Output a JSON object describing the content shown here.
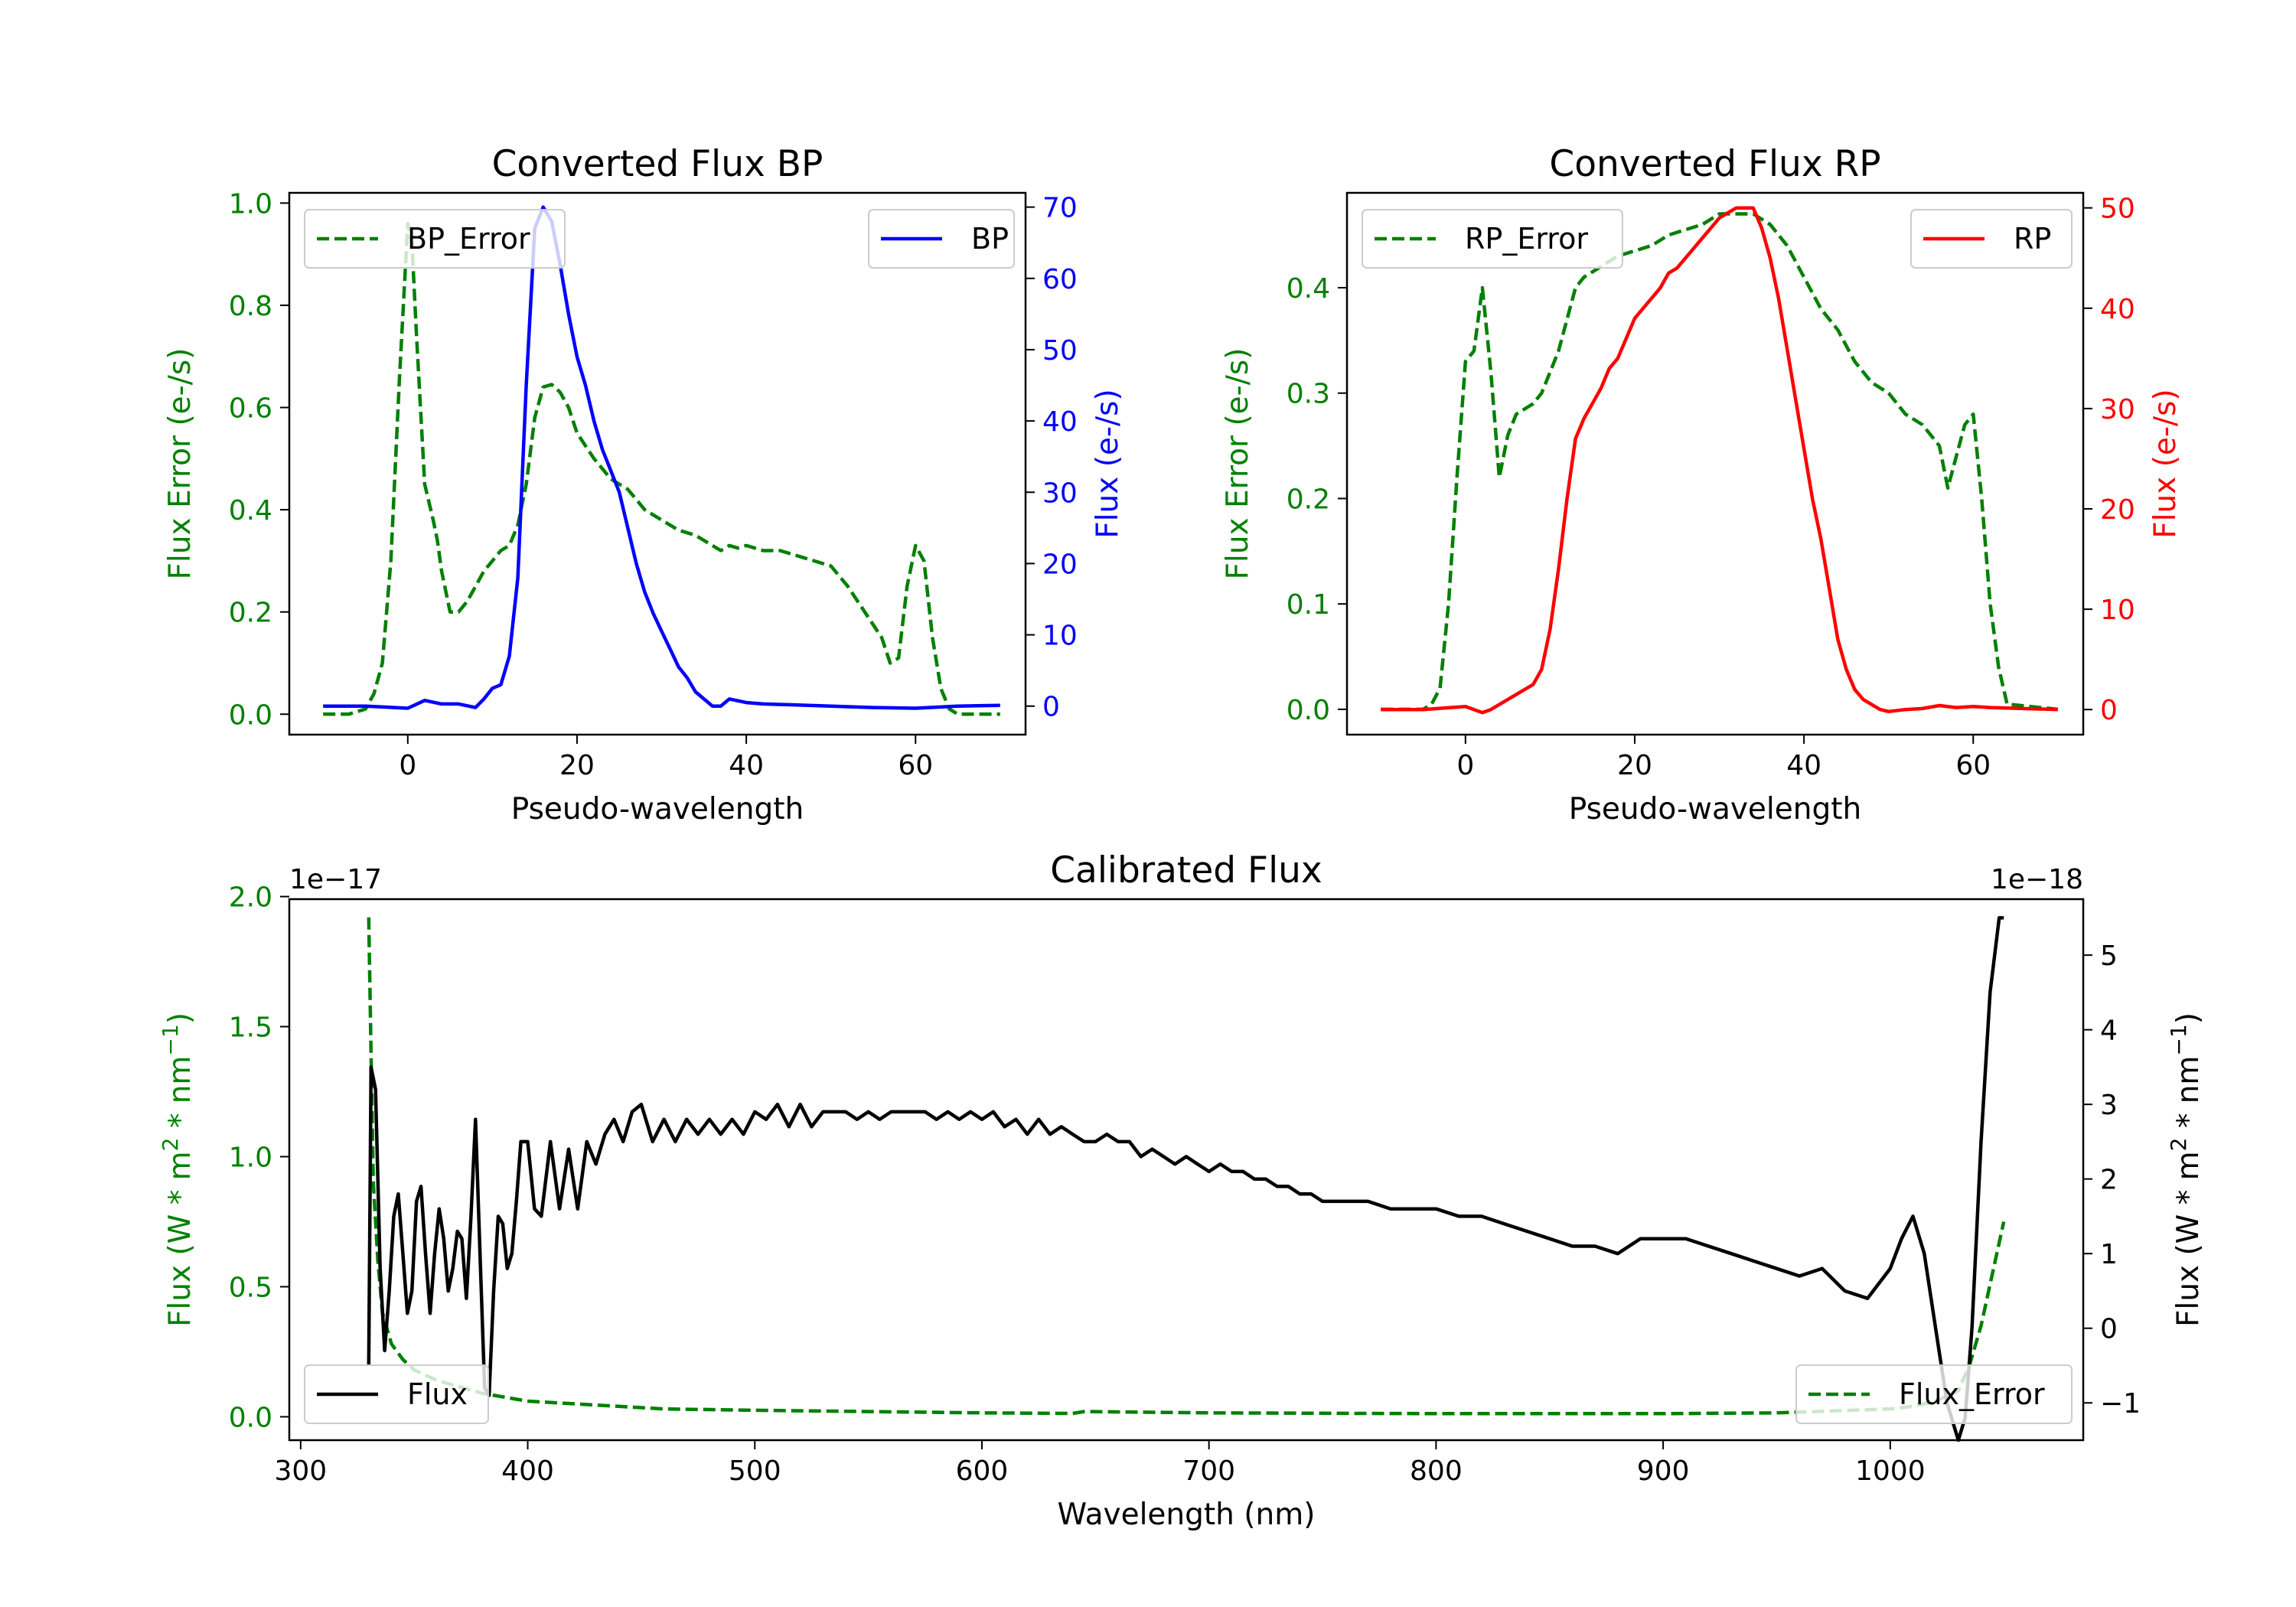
{
  "colors": {
    "green": "#008000",
    "blue": "#0000ff",
    "red": "#ff0000",
    "black": "#000000"
  },
  "chart_data": [
    {
      "type": "line",
      "title": "Converted Flux BP",
      "xlabel": "Pseudo-wavelength",
      "ylabel_left": "Flux Error (e-/s)",
      "ylabel_right": "Flux (e-/s)",
      "xlim": [
        -14,
        73
      ],
      "ylim_left": [
        -0.04,
        1.02
      ],
      "ylim_right": [
        -4,
        72
      ],
      "xticks": [
        0,
        20,
        40,
        60
      ],
      "yticks_left": [
        0.0,
        0.2,
        0.4,
        0.6,
        0.8,
        1.0
      ],
      "yticks_left_labels": [
        "0.0",
        "0.2",
        "0.4",
        "0.6",
        "0.8",
        "1.0"
      ],
      "yticks_right": [
        0,
        10,
        20,
        30,
        40,
        50,
        60,
        70
      ],
      "yticks_right_labels": [
        "0",
        "10",
        "20",
        "30",
        "40",
        "50",
        "60",
        "70"
      ],
      "legend_left": {
        "label": "BP_Error",
        "placement": "upper left"
      },
      "legend_right": {
        "label": "BP",
        "placement": "upper right"
      },
      "series_left": {
        "name": "BP_Error",
        "style": "dashed",
        "color": "green",
        "x": [
          -10,
          -7,
          -5,
          -4,
          -3,
          -2,
          -1,
          0,
          0.5,
          1,
          2,
          3,
          3.5,
          4,
          5,
          6,
          7,
          8,
          9,
          10,
          11,
          12,
          13,
          14,
          15,
          16,
          17,
          18,
          19,
          20,
          22,
          24,
          26,
          28,
          30,
          32,
          34,
          36,
          37,
          38,
          39,
          40,
          42,
          44,
          46,
          48,
          50,
          52,
          54,
          56,
          57,
          58,
          59,
          60,
          61,
          62,
          63,
          64,
          65,
          66,
          70
        ],
        "y": [
          0,
          0,
          0.01,
          0.04,
          0.1,
          0.3,
          0.65,
          0.96,
          0.92,
          0.75,
          0.45,
          0.38,
          0.34,
          0.28,
          0.2,
          0.2,
          0.22,
          0.25,
          0.28,
          0.3,
          0.32,
          0.33,
          0.37,
          0.45,
          0.58,
          0.64,
          0.645,
          0.63,
          0.6,
          0.55,
          0.5,
          0.46,
          0.44,
          0.4,
          0.38,
          0.36,
          0.35,
          0.33,
          0.32,
          0.33,
          0.325,
          0.33,
          0.32,
          0.32,
          0.31,
          0.3,
          0.29,
          0.25,
          0.2,
          0.15,
          0.1,
          0.11,
          0.25,
          0.33,
          0.3,
          0.15,
          0.05,
          0.01,
          0,
          0,
          0
        ]
      },
      "series_right": {
        "name": "BP",
        "style": "solid",
        "color": "blue",
        "x": [
          -10,
          -5,
          0,
          2,
          4,
          6,
          8,
          9,
          10,
          11,
          12,
          13,
          14,
          15,
          16,
          17,
          18,
          19,
          20,
          21,
          22,
          23,
          24,
          25,
          26,
          27,
          28,
          29,
          30,
          31,
          32,
          33,
          34,
          35,
          36,
          37,
          38,
          40,
          42,
          45,
          50,
          55,
          60,
          65,
          70
        ],
        "y": [
          0,
          0,
          -0.3,
          0.8,
          0.3,
          0.3,
          -0.2,
          1,
          2.5,
          3,
          7,
          18,
          45,
          67,
          70,
          68,
          62,
          55,
          49,
          45,
          40,
          36,
          33,
          30,
          25,
          20,
          16,
          13,
          10.5,
          8,
          5.5,
          4,
          2,
          1,
          0,
          0,
          1,
          0.5,
          0.3,
          0.2,
          0,
          -0.2,
          -0.3,
          0,
          0.1
        ]
      }
    },
    {
      "type": "line",
      "title": "Converted Flux RP",
      "xlabel": "Pseudo-wavelength",
      "ylabel_left": "Flux Error (e-/s)",
      "ylabel_right": "Flux (e-/s)",
      "xlim": [
        -14,
        73
      ],
      "ylim_left": [
        -0.024,
        0.49
      ],
      "ylim_right": [
        -2.5,
        51.5
      ],
      "xticks": [
        0,
        20,
        40,
        60
      ],
      "yticks_left": [
        0.0,
        0.1,
        0.2,
        0.3,
        0.4
      ],
      "yticks_left_labels": [
        "0.0",
        "0.1",
        "0.2",
        "0.3",
        "0.4"
      ],
      "yticks_right": [
        0,
        10,
        20,
        30,
        40,
        50
      ],
      "yticks_right_labels": [
        "0",
        "10",
        "20",
        "30",
        "40",
        "50"
      ],
      "legend_left": {
        "label": "RP_Error",
        "placement": "upper left"
      },
      "legend_right": {
        "label": "RP",
        "placement": "upper right"
      },
      "series_left": {
        "name": "RP_Error",
        "style": "dashed",
        "color": "green",
        "x": [
          -10,
          -5,
          -4,
          -3,
          -2,
          -1,
          0,
          1,
          2,
          3,
          4,
          5,
          6,
          7,
          8,
          9,
          10,
          11,
          12,
          13,
          14,
          15,
          16,
          17,
          18,
          20,
          22,
          24,
          26,
          28,
          30,
          32,
          34,
          36,
          38,
          40,
          42,
          44,
          46,
          48,
          50,
          52,
          54,
          55,
          56,
          57,
          58,
          59,
          60,
          61,
          62,
          63,
          64,
          70
        ],
        "y": [
          0,
          0,
          0.005,
          0.02,
          0.1,
          0.22,
          0.33,
          0.34,
          0.4,
          0.32,
          0.22,
          0.26,
          0.28,
          0.285,
          0.29,
          0.3,
          0.32,
          0.34,
          0.37,
          0.4,
          0.41,
          0.415,
          0.42,
          0.425,
          0.43,
          0.435,
          0.44,
          0.45,
          0.455,
          0.46,
          0.47,
          0.47,
          0.47,
          0.46,
          0.44,
          0.41,
          0.38,
          0.36,
          0.33,
          0.31,
          0.3,
          0.28,
          0.27,
          0.26,
          0.25,
          0.21,
          0.24,
          0.27,
          0.28,
          0.2,
          0.1,
          0.04,
          0.005,
          0
        ]
      },
      "series_right": {
        "name": "RP",
        "style": "solid",
        "color": "red",
        "x": [
          -10,
          -5,
          0,
          1,
          2,
          3,
          4,
          5,
          6,
          7,
          8,
          9,
          10,
          11,
          12,
          13,
          14,
          15,
          16,
          17,
          18,
          19,
          20,
          21,
          22,
          23,
          24,
          25,
          26,
          27,
          28,
          29,
          30,
          31,
          32,
          33,
          34,
          35,
          36,
          37,
          38,
          39,
          40,
          41,
          42,
          43,
          44,
          45,
          46,
          47,
          48,
          49,
          50,
          52,
          54,
          56,
          58,
          60,
          62,
          70
        ],
        "y": [
          0,
          0,
          0.3,
          0,
          -0.3,
          0,
          0.5,
          1,
          1.5,
          2,
          2.5,
          4,
          8,
          14,
          21,
          27,
          29,
          30.5,
          32,
          34,
          35,
          37,
          39,
          40,
          41,
          42,
          43.5,
          44,
          45,
          46,
          47,
          48,
          49,
          49.5,
          50,
          50,
          50,
          48,
          45,
          41,
          36,
          31,
          26,
          21,
          17,
          12,
          7,
          4,
          2,
          1,
          0.5,
          0,
          -0.2,
          0,
          0.1,
          0.4,
          0.2,
          0.3,
          0.2,
          0
        ]
      }
    },
    {
      "type": "line",
      "title": "Calibrated Flux",
      "xlabel": "Wavelength (nm)",
      "ylabel_left": "Flux (W * m^2 * nm^-1)",
      "ylabel_right": "Flux (W * m^2 * nm^-1)",
      "offset_left": "1e−17",
      "offset_right": "1e−18",
      "xlim": [
        295,
        1085
      ],
      "ylim_left": [
        -0.09,
        1.99
      ],
      "ylim_right": [
        -1.5,
        5.75
      ],
      "xticks": [
        300,
        400,
        500,
        600,
        700,
        800,
        900,
        1000
      ],
      "yticks_left": [
        0.0,
        0.5,
        1.0,
        1.5,
        2.0
      ],
      "yticks_left_labels": [
        "0.0",
        "0.5",
        "1.0",
        "1.5",
        "2.0"
      ],
      "yticks_right": [
        -1,
        0,
        1,
        2,
        3,
        4,
        5
      ],
      "yticks_right_labels": [
        "−1",
        "0",
        "1",
        "2",
        "3",
        "4",
        "5"
      ],
      "legend_left": {
        "label": "Flux",
        "placement": "lower left"
      },
      "legend_right": {
        "label": "Flux_Error",
        "placement": "lower right"
      },
      "series_left": {
        "name": "Flux_Error",
        "style": "dashed",
        "color": "green",
        "x": [
          330,
          331,
          332,
          334,
          336,
          340,
          345,
          350,
          360,
          380,
          400,
          420,
          440,
          460,
          500,
          550,
          600,
          640,
          645,
          700,
          800,
          900,
          950,
          1000,
          1010,
          1020,
          1030,
          1035,
          1040,
          1045,
          1050
        ],
        "y": [
          1.92,
          1.4,
          0.9,
          0.6,
          0.4,
          0.28,
          0.22,
          0.18,
          0.14,
          0.09,
          0.06,
          0.05,
          0.04,
          0.03,
          0.025,
          0.02,
          0.015,
          0.013,
          0.02,
          0.015,
          0.012,
          0.012,
          0.015,
          0.03,
          0.04,
          0.06,
          0.1,
          0.2,
          0.35,
          0.55,
          0.75
        ]
      },
      "series_right": {
        "name": "Flux",
        "style": "solid",
        "color": "black",
        "x": [
          330,
          331,
          333,
          335,
          337,
          339,
          341,
          343,
          345,
          347,
          349,
          351,
          353,
          355,
          357,
          359,
          361,
          363,
          365,
          367,
          369,
          371,
          373,
          375,
          377,
          379,
          381,
          383,
          385,
          387,
          389,
          391,
          393,
          395,
          397,
          400,
          403,
          406,
          410,
          414,
          418,
          422,
          426,
          430,
          434,
          438,
          442,
          446,
          450,
          455,
          460,
          465,
          470,
          475,
          480,
          485,
          490,
          495,
          500,
          505,
          510,
          515,
          520,
          525,
          530,
          535,
          540,
          545,
          550,
          555,
          560,
          565,
          570,
          575,
          580,
          585,
          590,
          595,
          600,
          605,
          610,
          615,
          620,
          625,
          630,
          635,
          640,
          645,
          650,
          655,
          660,
          665,
          670,
          675,
          680,
          685,
          690,
          695,
          700,
          705,
          710,
          715,
          720,
          725,
          730,
          735,
          740,
          745,
          750,
          760,
          770,
          780,
          790,
          800,
          810,
          820,
          830,
          840,
          850,
          860,
          870,
          880,
          890,
          900,
          910,
          920,
          930,
          940,
          950,
          960,
          970,
          980,
          990,
          1000,
          1005,
          1010,
          1015,
          1020,
          1025,
          1030,
          1033,
          1036,
          1040,
          1044,
          1048,
          1050
        ],
        "y": [
          -0.5,
          3.5,
          3.2,
          0.8,
          -0.3,
          0.5,
          1.5,
          1.8,
          1,
          0.2,
          0.5,
          1.7,
          1.9,
          1,
          0.2,
          1,
          1.6,
          1.2,
          0.5,
          0.8,
          1.3,
          1.2,
          0.4,
          1.5,
          2.8,
          1,
          -0.8,
          -0.9,
          0.5,
          1.5,
          1.4,
          0.8,
          1,
          1.7,
          2.5,
          2.5,
          1.6,
          1.5,
          2.5,
          1.6,
          2.4,
          1.6,
          2.5,
          2.2,
          2.6,
          2.8,
          2.5,
          2.9,
          3,
          2.5,
          2.8,
          2.5,
          2.8,
          2.6,
          2.8,
          2.6,
          2.8,
          2.6,
          2.9,
          2.8,
          3,
          2.7,
          3,
          2.7,
          2.9,
          2.9,
          2.9,
          2.8,
          2.9,
          2.8,
          2.9,
          2.9,
          2.9,
          2.9,
          2.8,
          2.9,
          2.8,
          2.9,
          2.8,
          2.9,
          2.7,
          2.8,
          2.6,
          2.8,
          2.6,
          2.7,
          2.6,
          2.5,
          2.5,
          2.6,
          2.5,
          2.5,
          2.3,
          2.4,
          2.3,
          2.2,
          2.3,
          2.2,
          2.1,
          2.2,
          2.1,
          2.1,
          2,
          2,
          1.9,
          1.9,
          1.8,
          1.8,
          1.7,
          1.7,
          1.7,
          1.6,
          1.6,
          1.6,
          1.5,
          1.5,
          1.4,
          1.3,
          1.2,
          1.1,
          1.1,
          1,
          1.2,
          1.2,
          1.2,
          1.1,
          1,
          0.9,
          0.8,
          0.7,
          0.8,
          0.5,
          0.4,
          0.8,
          1.2,
          1.5,
          1,
          0,
          -1,
          -1.5,
          -1.2,
          0,
          2.5,
          4.5,
          5.5,
          5.5
        ]
      }
    }
  ]
}
